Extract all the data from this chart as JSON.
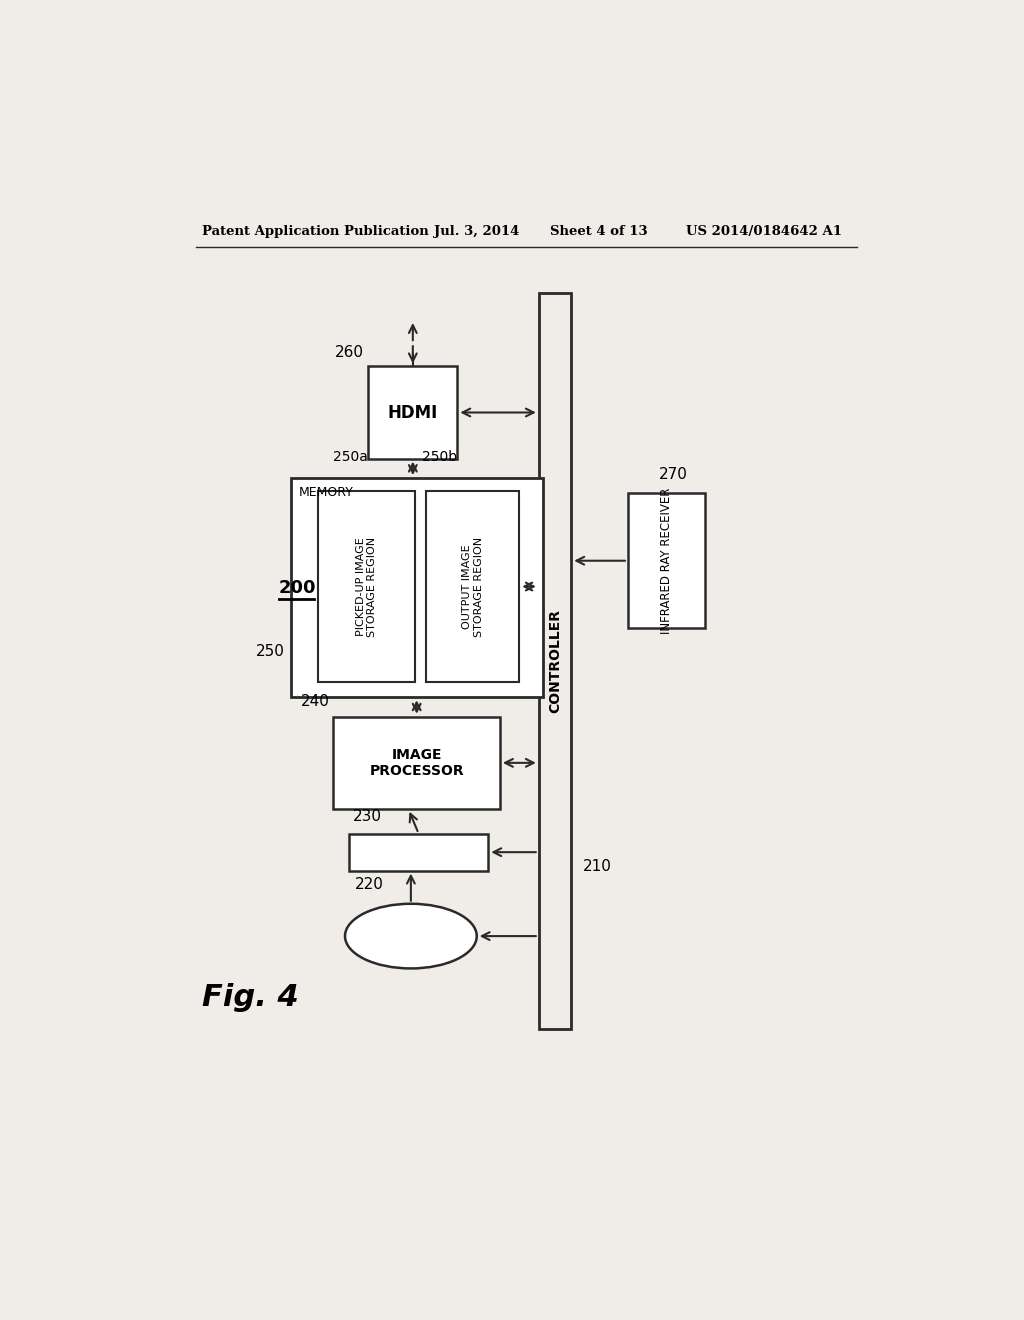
{
  "bg_color": "#f0ede8",
  "header_text": "Patent Application Publication",
  "header_date": "Jul. 3, 2014",
  "header_sheet": "Sheet 4 of 13",
  "header_patent": "US 2014/0184642 A1",
  "fig_label": "Fig. 4",
  "system_label": "200",
  "controller_label": "210",
  "camera_label": "220",
  "buffer_label": "230",
  "image_proc_label": "240",
  "memory_label": "250",
  "memory_sub_a": "250a",
  "memory_sub_b": "250b",
  "hdmi_label": "260",
  "ir_label": "270",
  "controller_text": "CONTROLLER",
  "image_proc_text": "IMAGE\nPROCESSOR",
  "memory_text": "MEMORY",
  "picked_up_text": "PICKED-UP IMAGE\nSTORAGE REGION",
  "output_text": "OUTPUT IMAGE\nSTORAGE REGION",
  "hdmi_text": "HDMI",
  "ir_text": "INFRARED RAY RECEIVER"
}
